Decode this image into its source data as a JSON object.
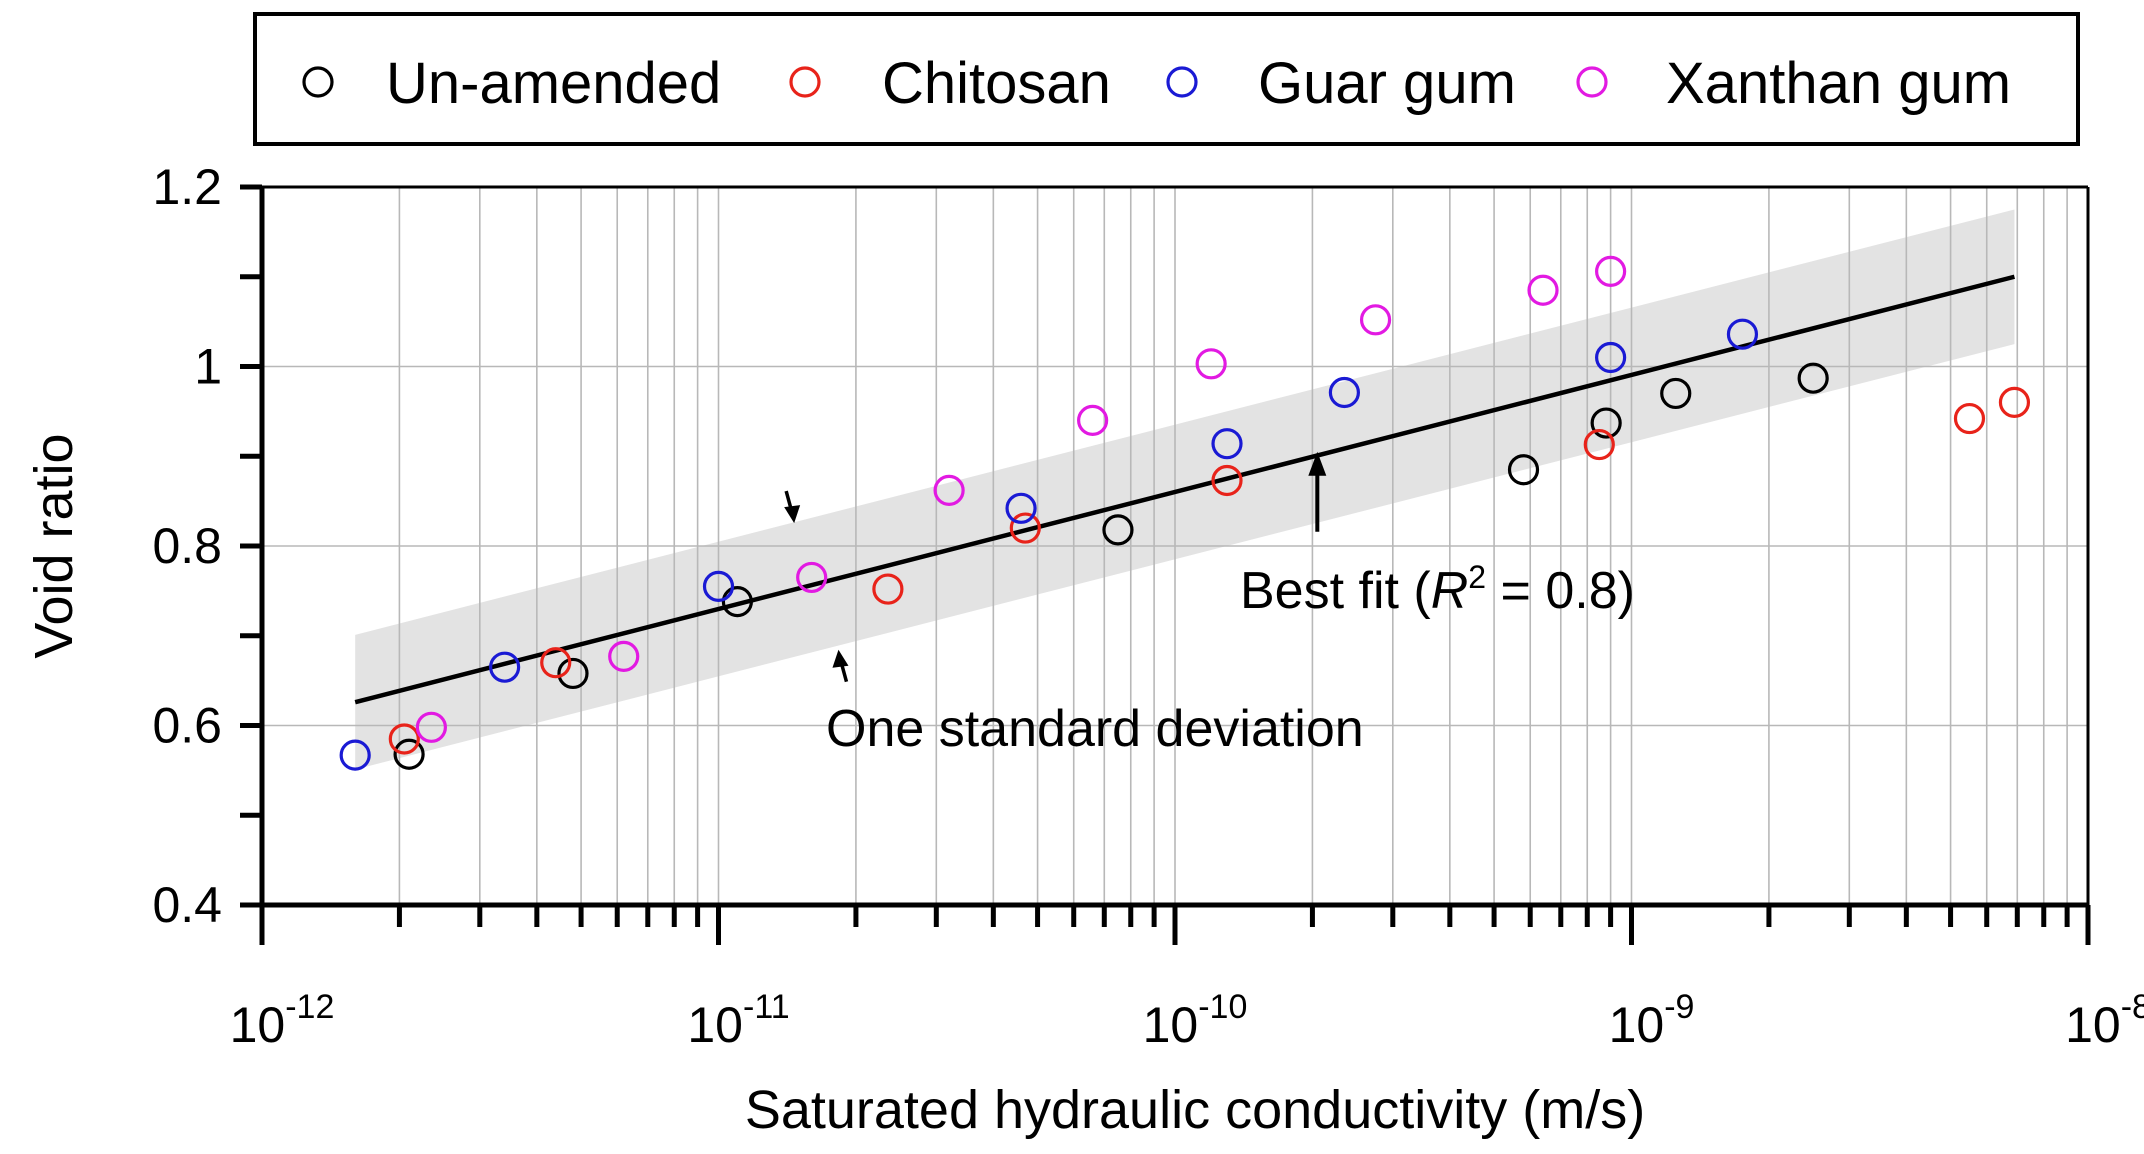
{
  "chart_data": {
    "type": "scatter",
    "title": "",
    "xlabel": "Saturated hydraulic conductivity (m/s)",
    "ylabel": "Void ratio",
    "xscale": "log",
    "xlim": [
      1e-12,
      1e-08
    ],
    "ylim": [
      0.4,
      1.2
    ],
    "y_ticks": [
      0.4,
      0.6,
      0.8,
      1.0,
      1.2
    ],
    "y_tick_labels": [
      "0.4",
      "0.6",
      "0.8",
      "1",
      "1.2"
    ],
    "x_ticks": [
      {
        "base": "10",
        "exp": "-12"
      },
      {
        "base": "10",
        "exp": "-11"
      },
      {
        "base": "10",
        "exp": "-10"
      },
      {
        "base": "10",
        "exp": "-9"
      },
      {
        "base": "10",
        "exp": "-8"
      }
    ],
    "grid": true,
    "legend_position": "top",
    "series": [
      {
        "name": "Un-amended",
        "color": "#000000",
        "points": [
          {
            "x": 2.1e-12,
            "y": 0.568
          },
          {
            "x": 4.8e-12,
            "y": 0.658
          },
          {
            "x": 1.1e-11,
            "y": 0.738
          },
          {
            "x": 7.5e-11,
            "y": 0.818
          },
          {
            "x": 5.8e-10,
            "y": 0.885
          },
          {
            "x": 8.8e-10,
            "y": 0.937
          },
          {
            "x": 1.25e-09,
            "y": 0.97
          },
          {
            "x": 2.5e-09,
            "y": 0.987
          }
        ]
      },
      {
        "name": "Chitosan",
        "color": "#e8231a",
        "points": [
          {
            "x": 2.05e-12,
            "y": 0.585
          },
          {
            "x": 4.4e-12,
            "y": 0.67
          },
          {
            "x": 2.35e-11,
            "y": 0.752
          },
          {
            "x": 4.7e-11,
            "y": 0.82
          },
          {
            "x": 1.3e-10,
            "y": 0.873
          },
          {
            "x": 8.5e-10,
            "y": 0.913
          },
          {
            "x": 5.5e-09,
            "y": 0.942
          },
          {
            "x": 6.9e-09,
            "y": 0.96
          }
        ]
      },
      {
        "name": "Guar gum",
        "color": "#1a1ad4",
        "points": [
          {
            "x": 1.6e-12,
            "y": 0.567
          },
          {
            "x": 3.4e-12,
            "y": 0.665
          },
          {
            "x": 1e-11,
            "y": 0.755
          },
          {
            "x": 4.6e-11,
            "y": 0.842
          },
          {
            "x": 1.3e-10,
            "y": 0.914
          },
          {
            "x": 2.35e-10,
            "y": 0.971
          },
          {
            "x": 9e-10,
            "y": 1.01
          },
          {
            "x": 1.75e-09,
            "y": 1.036
          }
        ]
      },
      {
        "name": "Xanthan gum",
        "color": "#e21ae2",
        "points": [
          {
            "x": 2.35e-12,
            "y": 0.598
          },
          {
            "x": 6.2e-12,
            "y": 0.677
          },
          {
            "x": 1.6e-11,
            "y": 0.765
          },
          {
            "x": 3.2e-11,
            "y": 0.862
          },
          {
            "x": 6.6e-11,
            "y": 0.94
          },
          {
            "x": 1.2e-10,
            "y": 1.003
          },
          {
            "x": 2.75e-10,
            "y": 1.052
          },
          {
            "x": 6.4e-10,
            "y": 1.085
          },
          {
            "x": 9e-10,
            "y": 1.106
          }
        ]
      }
    ],
    "best_fit": {
      "x_range": [
        1.6e-12,
        6.9e-09
      ],
      "y_range": [
        0.626,
        1.1
      ],
      "band_halfwidth": 0.075,
      "label_prefix": "Best fit (",
      "label_r": "R",
      "label_sup": "2",
      "label_suffix": " = 0.8)",
      "arrow_target": {
        "x": 2.05e-10,
        "y": 0.905
      }
    },
    "std_annotation": {
      "label": "One standard deviation",
      "upper_arrow_target": {
        "x": 1.45e-11,
        "y": 0.83
      },
      "lower_arrow_target": {
        "x": 1.85e-11,
        "y": 0.68
      }
    }
  }
}
